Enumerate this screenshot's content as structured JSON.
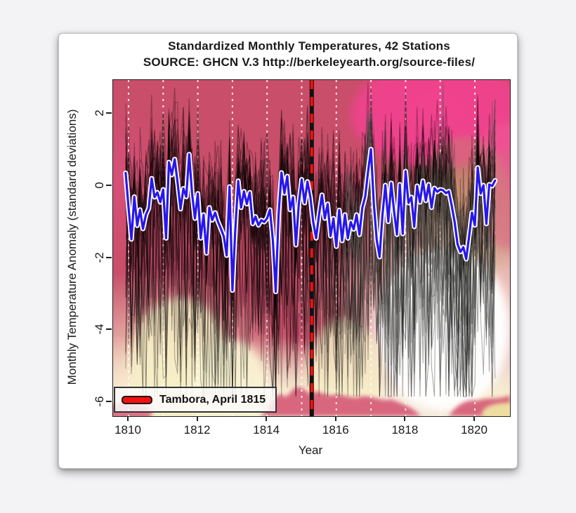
{
  "figure": {
    "title_line1": "Standardized Monthly Temperatures, 42 Stations",
    "title_line2": "SOURCE: GHCN V.3 http://berkeleyearth.org/source-files/"
  },
  "axes": {
    "x_label": "Year",
    "y_label": "Monthly Temperature Anomaly (standard deviations)",
    "x_tick_labels": [
      "1810",
      "1812",
      "1814",
      "1816",
      "1818",
      "1820"
    ],
    "x_tick_values": [
      1810,
      1812,
      1814,
      1816,
      1818,
      1820
    ],
    "y_tick_labels": [
      "2",
      "0",
      "-2",
      "-4",
      "-6"
    ],
    "y_tick_values": [
      2,
      0,
      -2,
      -4,
      -6
    ],
    "x_range": [
      1809.55,
      1821.0
    ],
    "y_range": [
      -6.4,
      2.95
    ]
  },
  "legend": {
    "label": "Tambora, April 1815",
    "marker_color": "#f50f0f"
  },
  "colors": {
    "plot_base": "#c84e69",
    "hot_pink": "#f2438f",
    "cream": "#f6efcc",
    "mean_line": "#2817ec",
    "mean_outline": "#ffffff",
    "event_red": "#f50f0f",
    "event_black": "#111111",
    "gridline": "#ffffff"
  },
  "chart_data": {
    "type": "line",
    "title": "Standardized Monthly Temperatures, 42 Stations",
    "subtitle": "SOURCE: GHCN V.3 http://berkeleyearth.org/source-files/",
    "xlabel": "Year",
    "ylabel": "Monthly Temperature Anomaly (standard deviations)",
    "xlim": [
      1809.55,
      1821.0
    ],
    "ylim": [
      -6.4,
      2.95
    ],
    "gridlines_x": [
      1810,
      1811,
      1812,
      1813,
      1814,
      1815,
      1816,
      1817,
      1818,
      1819,
      1820
    ],
    "event_line": {
      "label": "Tambora, April 1815",
      "x": 1815.29,
      "style": "vertical dashed, red on black"
    },
    "x_start": 1809.9167,
    "x_step_years": 0.0833333,
    "series": [
      {
        "name": "ensemble-mean-42-stations",
        "color": "#2817ec",
        "outline": "#ffffff",
        "values": [
          0.36,
          -0.6,
          -1.48,
          -0.3,
          -1.1,
          -0.66,
          -1.19,
          -0.8,
          -0.62,
          0.21,
          -0.31,
          -0.18,
          -0.45,
          -0.1,
          -1.45,
          0.66,
          0.31,
          0.74,
          0.1,
          -0.64,
          -0.07,
          -0.3,
          0.88,
          -0.2,
          -0.9,
          -0.21,
          -1.45,
          -0.8,
          -1.87,
          -0.6,
          -0.95,
          -0.74,
          -1.0,
          -1.19,
          -1.4,
          -1.93,
          -0.02,
          -2.9,
          -1.2,
          0.14,
          -0.6,
          -0.15,
          -0.5,
          -0.18,
          -1.05,
          -0.85,
          -1.09,
          -0.95,
          -1.0,
          -0.9,
          -0.66,
          -1.5,
          -2.94,
          -0.8,
          0.37,
          -0.2,
          0.27,
          -0.66,
          -0.31,
          -1.64,
          -0.5,
          0.18,
          -0.47,
          0.12,
          -0.3,
          -1.0,
          -1.45,
          -0.8,
          -0.25,
          -0.9,
          -0.5,
          -1.39,
          -0.9,
          -1.68,
          -0.67,
          -1.52,
          -0.8,
          -1.45,
          -1.0,
          -1.2,
          -0.8,
          -1.35,
          -0.6,
          -0.3,
          0.4,
          1.02,
          -0.5,
          -1.5,
          -1.97,
          -0.8,
          0.02,
          -0.99,
          0.08,
          -0.7,
          -1.35,
          0.04,
          -1.33,
          0.41,
          -0.47,
          -0.31,
          -1.13,
          0.0,
          -0.45,
          0.14,
          -0.41,
          0.04,
          -0.6,
          -0.06,
          -0.16,
          -0.1,
          -0.12,
          -0.2,
          -0.15,
          -0.55,
          -1.0,
          -1.62,
          -1.83,
          -1.7,
          -2.03,
          -1.4,
          -0.74,
          -1.09,
          0.51,
          -0.21,
          0.02,
          -1.05,
          0.04,
          0.0,
          0.15
        ]
      }
    ],
    "stations": {
      "count": 42,
      "black_count": 34,
      "gray_count": 8,
      "style": "semi-transparent jagged monthly station lines around the mean",
      "seed": 20250412,
      "noise_sd": 0.95
    }
  }
}
